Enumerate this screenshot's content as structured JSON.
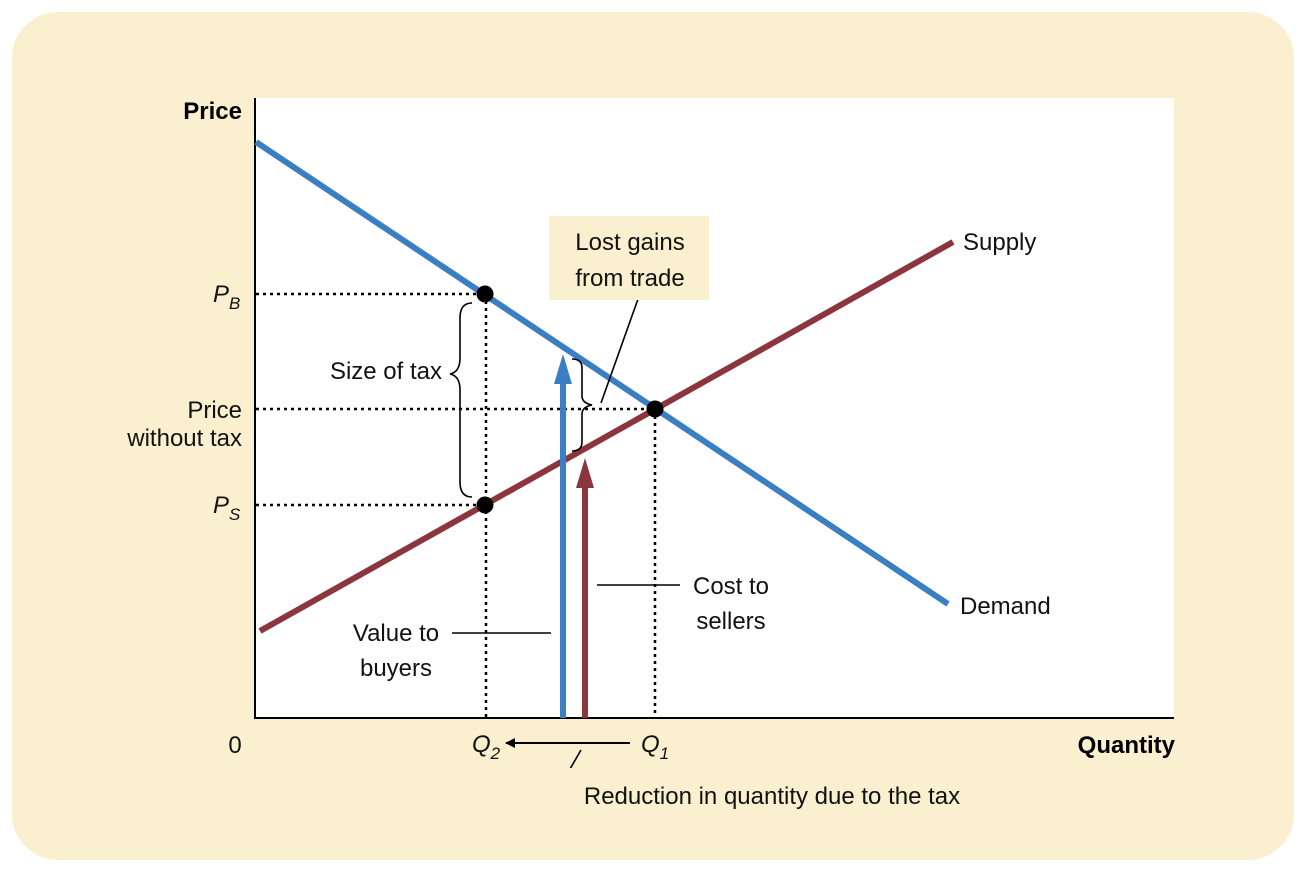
{
  "axes": {
    "y_title": "Price",
    "x_title": "Quantity",
    "origin": "0"
  },
  "price_labels": {
    "pb_main": "P",
    "pb_sub": "B",
    "no_tax_line1": "Price",
    "no_tax_line2": "without tax",
    "ps_main": "P",
    "ps_sub": "S"
  },
  "quantity_labels": {
    "q2_main": "Q",
    "q2_sub": "2",
    "q1_main": "Q",
    "q1_sub": "1"
  },
  "curves": {
    "supply": "Supply",
    "demand": "Demand"
  },
  "annotations": {
    "size_of_tax": "Size of tax",
    "lost_gains_line1": "Lost gains",
    "lost_gains_line2": "from trade",
    "value_to_buyers_line1": "Value to",
    "value_to_buyers_line2": "buyers",
    "cost_to_sellers_line1": "Cost to",
    "cost_to_sellers_line2": "sellers",
    "reduction": "Reduction in quantity due to the tax"
  },
  "colors": {
    "supply": "#8b353d",
    "demand": "#3a7ec4",
    "panel": "#faf0cf",
    "plot": "#ffffff"
  }
}
